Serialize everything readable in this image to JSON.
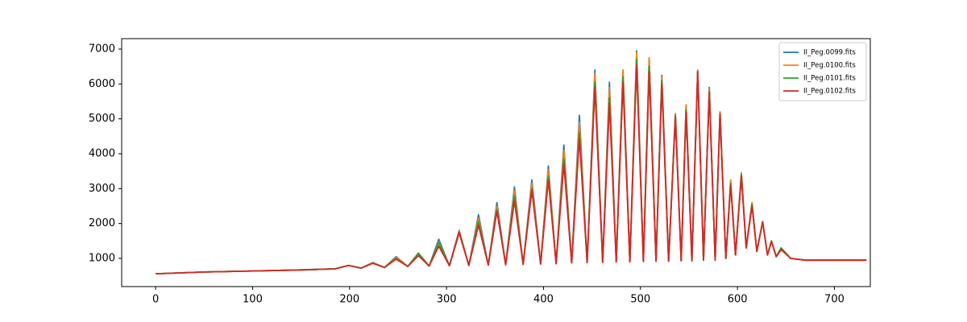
{
  "chart_data": {
    "type": "line",
    "x": [
      0,
      50,
      100,
      150,
      185,
      199,
      212,
      224,
      236,
      248,
      260,
      271,
      282,
      292,
      303,
      313,
      323,
      333,
      343,
      352,
      361,
      370,
      379,
      388,
      397,
      405,
      413,
      421,
      429,
      437,
      445,
      453,
      461,
      468,
      475,
      482,
      489,
      496,
      503,
      509,
      516,
      522,
      529,
      536,
      542,
      547,
      553,
      559,
      565,
      571,
      577,
      582,
      588,
      593,
      598,
      604,
      609,
      615,
      620,
      626,
      631,
      635,
      640,
      645,
      655,
      670,
      700,
      733
    ],
    "series": [
      {
        "name": "II_Peg.0099.fits",
        "color": "#1f77b4",
        "values": [
          560,
          610,
          640,
          670,
          700,
          800,
          720,
          880,
          740,
          1050,
          770,
          1150,
          780,
          1550,
          790,
          1800,
          800,
          2250,
          810,
          2600,
          820,
          3050,
          830,
          3250,
          840,
          3650,
          850,
          4250,
          870,
          5100,
          880,
          6400,
          890,
          6050,
          900,
          6400,
          900,
          6950,
          910,
          6750,
          920,
          6250,
          920,
          5150,
          930,
          5400,
          930,
          6400,
          950,
          5900,
          950,
          5200,
          1000,
          3200,
          1100,
          3450,
          1300,
          2600,
          1200,
          2050,
          1100,
          1500,
          1050,
          1300,
          1000,
          950,
          950,
          950
        ]
      },
      {
        "name": "II_Peg.0100.fits",
        "color": "#ff7f0e",
        "values": [
          560,
          610,
          640,
          670,
          700,
          800,
          720,
          880,
          740,
          1030,
          770,
          1150,
          780,
          1480,
          790,
          1780,
          800,
          2150,
          810,
          2500,
          820,
          2950,
          830,
          3150,
          840,
          3550,
          850,
          4100,
          870,
          4900,
          880,
          6300,
          890,
          5900,
          900,
          6400,
          900,
          6900,
          910,
          6750,
          920,
          6200,
          920,
          5150,
          930,
          5400,
          930,
          6400,
          950,
          5850,
          950,
          5200,
          1000,
          3250,
          1100,
          3450,
          1300,
          2600,
          1200,
          2050,
          1100,
          1500,
          1050,
          1300,
          1000,
          950,
          950,
          950
        ]
      },
      {
        "name": "II_Peg.0101.fits",
        "color": "#2ca02c",
        "values": [
          560,
          610,
          640,
          670,
          700,
          800,
          720,
          870,
          740,
          1000,
          770,
          1150,
          780,
          1450,
          790,
          1720,
          800,
          2050,
          810,
          2400,
          820,
          2800,
          830,
          3000,
          840,
          3350,
          850,
          3850,
          870,
          4600,
          880,
          6050,
          890,
          5600,
          900,
          6200,
          900,
          6700,
          910,
          6500,
          920,
          6100,
          920,
          5100,
          930,
          5250,
          930,
          6350,
          950,
          5800,
          950,
          5150,
          1000,
          3150,
          1100,
          3400,
          1300,
          2550,
          1200,
          2050,
          1100,
          1500,
          1050,
          1300,
          1000,
          950,
          950,
          950
        ]
      },
      {
        "name": "II_Peg.0102.fits",
        "color": "#d62728",
        "values": [
          560,
          610,
          640,
          670,
          700,
          800,
          720,
          860,
          740,
          980,
          770,
          1080,
          780,
          1350,
          790,
          1750,
          800,
          1950,
          810,
          2350,
          820,
          2650,
          830,
          2950,
          840,
          3250,
          850,
          3700,
          870,
          4450,
          880,
          5900,
          890,
          5450,
          900,
          6050,
          900,
          6550,
          910,
          6350,
          920,
          6000,
          920,
          5050,
          930,
          5200,
          930,
          6350,
          950,
          5750,
          950,
          5150,
          1000,
          3100,
          1100,
          3350,
          1300,
          2500,
          1200,
          2050,
          1100,
          1480,
          1050,
          1250,
          1000,
          950,
          950,
          950
        ]
      }
    ],
    "xlim": [
      -35,
      737
    ],
    "ylim": [
      192,
      7300
    ],
    "xticks": [
      0,
      100,
      200,
      300,
      400,
      500,
      600,
      700
    ],
    "yticks": [
      1000,
      2000,
      3000,
      4000,
      5000,
      6000,
      7000
    ],
    "legend": "upper right"
  }
}
